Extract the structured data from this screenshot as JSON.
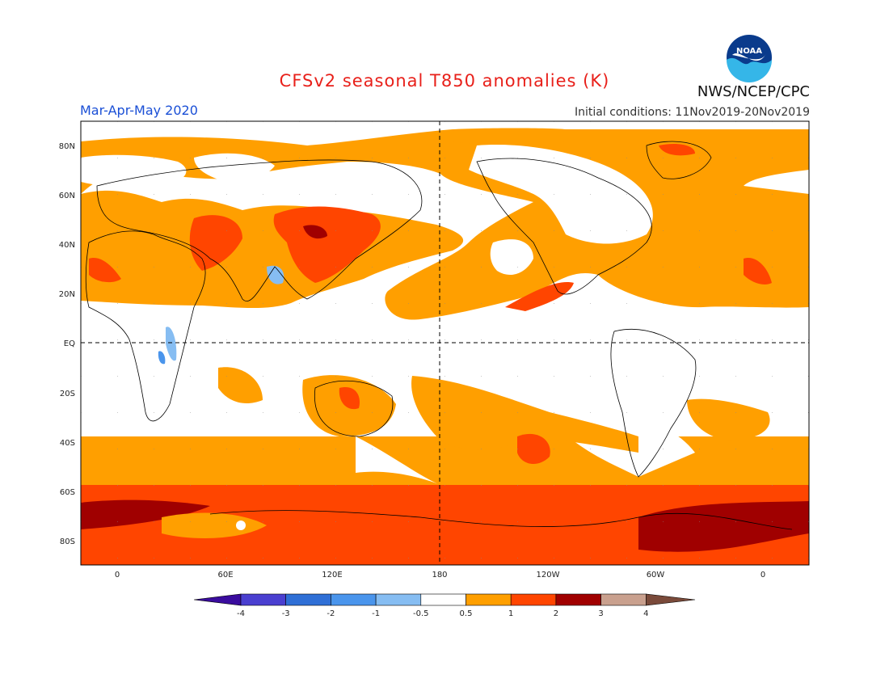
{
  "title": "CFSv2 seasonal T850 anomalies (K)",
  "season": "Mar-Apr-May 2020",
  "initial_conditions": "Initial conditions: 11Nov2019-20Nov2019",
  "agency": "NWS/NCEP/CPC",
  "logo_text": "NOAA",
  "logo_icon": "noaa-logo-icon",
  "lat_labels": [
    "80N",
    "60N",
    "40N",
    "20N",
    "EQ",
    "20S",
    "40S",
    "60S",
    "80S"
  ],
  "lon_labels": [
    "0",
    "60E",
    "120E",
    "180",
    "120W",
    "60W",
    "0"
  ],
  "colorbar": {
    "labels": [
      "-4",
      "-3",
      "-2",
      "-1",
      "-0.5",
      "0.5",
      "1",
      "2",
      "3",
      "4"
    ],
    "colors": [
      "#3a0c9e",
      "#4a3fd0",
      "#2f6fd6",
      "#4a95ec",
      "#86bdf2",
      "#ffffff",
      "#ff9f00",
      "#ff4500",
      "#a00000",
      "#c9a08e",
      "#7a4a3a"
    ]
  }
}
